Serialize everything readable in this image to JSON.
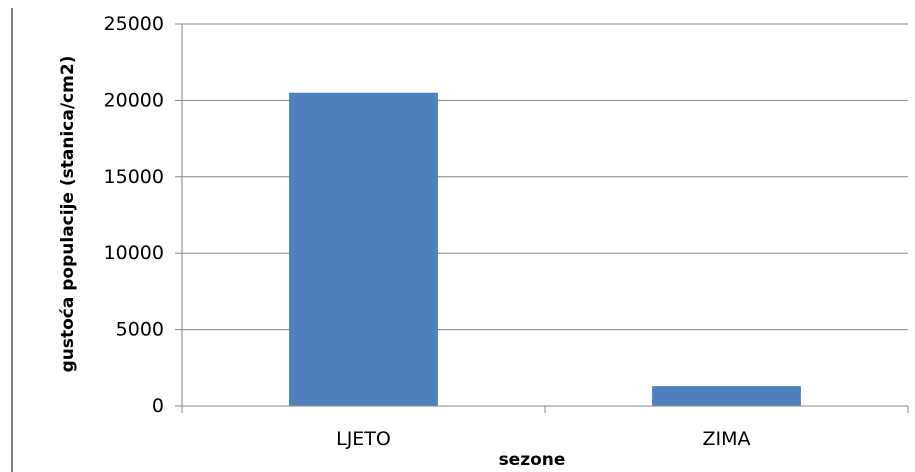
{
  "chart_data": {
    "type": "bar",
    "title": "",
    "xlabel": "sezone",
    "ylabel": "gustoća populacije  (stanica/cm2)",
    "categories": [
      "LJETO",
      "ZIMA"
    ],
    "values": [
      20500,
      1300
    ],
    "ylim": [
      0,
      25000
    ],
    "yticks": [
      0,
      5000,
      10000,
      15000,
      20000,
      25000
    ],
    "grid": true,
    "legend": "none",
    "bar_color": "#4f81bd",
    "gridline_color": "#868686"
  }
}
